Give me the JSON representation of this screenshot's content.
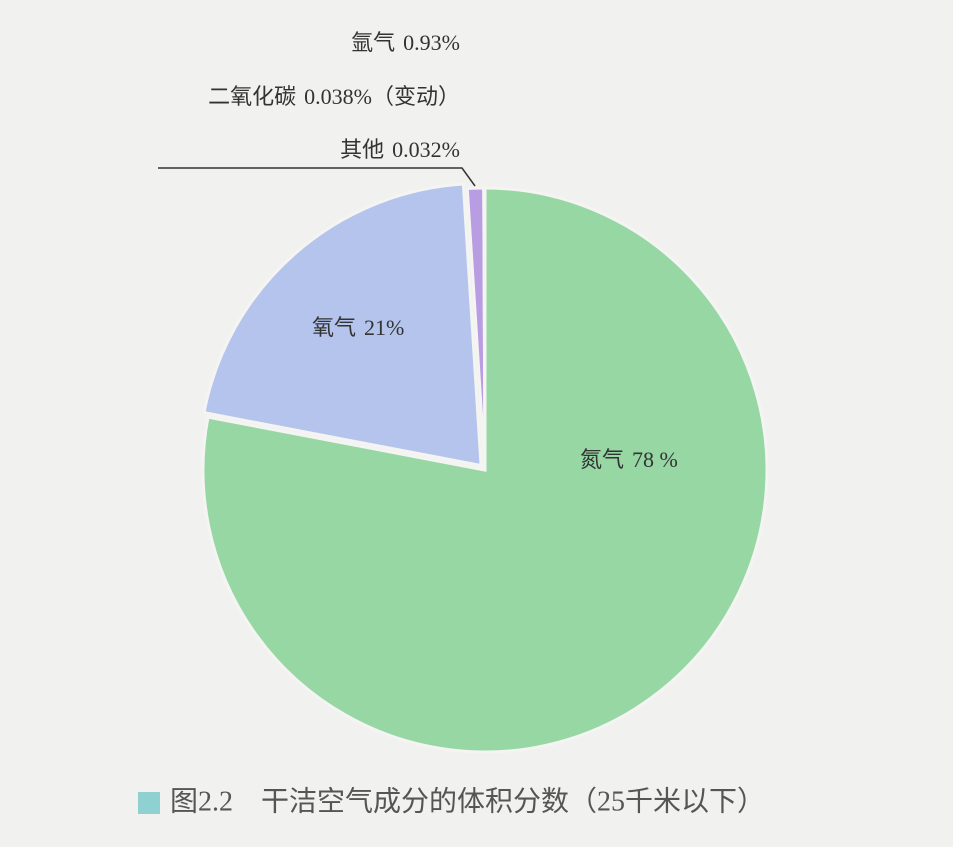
{
  "chart_data": {
    "type": "pie",
    "title": "图2.2　干洁空气成分的体积分数（25千米以下）",
    "categories": [
      "氮气",
      "氧气",
      "氩气",
      "二氧化碳",
      "其他"
    ],
    "values": [
      78,
      21,
      0.93,
      0.038,
      0.032
    ],
    "value_labels": [
      "78 %",
      "21%",
      "0.93%",
      "0.038%（变动）",
      "0.032%"
    ],
    "colors": [
      "#96d7a4",
      "#b5c4ec",
      "#b99de2",
      "#a98fd8",
      "#c2a6e6"
    ]
  }
}
